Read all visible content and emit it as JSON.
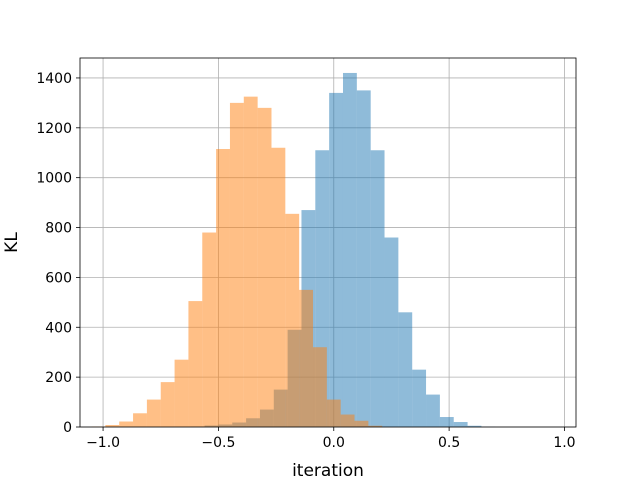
{
  "chart_data": {
    "type": "bar",
    "title": "",
    "xlabel": "iteration",
    "ylabel": "KL",
    "xlim": [
      -1.1,
      1.05
    ],
    "ylim": [
      0,
      1480
    ],
    "grid": true,
    "x_ticks": [
      -1.0,
      -0.5,
      0.0,
      0.5,
      1.0
    ],
    "x_tick_labels": [
      "−1.0",
      "−0.5",
      "0.0",
      "0.5",
      "1.0"
    ],
    "y_ticks": [
      0,
      200,
      400,
      600,
      800,
      1000,
      1200,
      1400
    ],
    "y_tick_labels": [
      "0",
      "200",
      "400",
      "600",
      "800",
      "1000",
      "1200",
      "1400"
    ],
    "series": [
      {
        "color": "#1f77b4",
        "opacity": 0.5,
        "bin_edges": [
          -0.62,
          -0.56,
          -0.5,
          -0.44,
          -0.38,
          -0.32,
          -0.26,
          -0.2,
          -0.14,
          -0.08,
          -0.02,
          0.04,
          0.1,
          0.16,
          0.22,
          0.28,
          0.34,
          0.4,
          0.46,
          0.52,
          0.58,
          0.64,
          0.7
        ],
        "counts": [
          2,
          6,
          10,
          18,
          35,
          70,
          150,
          390,
          870,
          1110,
          1340,
          1420,
          1350,
          1110,
          760,
          460,
          230,
          130,
          40,
          20,
          5,
          1
        ]
      },
      {
        "color": "#ff7f0e",
        "opacity": 0.5,
        "bin_edges": [
          -1.05,
          -0.99,
          -0.93,
          -0.87,
          -0.81,
          -0.75,
          -0.69,
          -0.63,
          -0.57,
          -0.51,
          -0.45,
          -0.39,
          -0.33,
          -0.27,
          -0.21,
          -0.15,
          -0.09,
          -0.03,
          0.03,
          0.09,
          0.15,
          0.21
        ],
        "counts": [
          2,
          8,
          22,
          55,
          110,
          180,
          270,
          505,
          780,
          1115,
          1300,
          1325,
          1280,
          1120,
          855,
          550,
          320,
          110,
          50,
          25,
          5
        ]
      }
    ]
  }
}
